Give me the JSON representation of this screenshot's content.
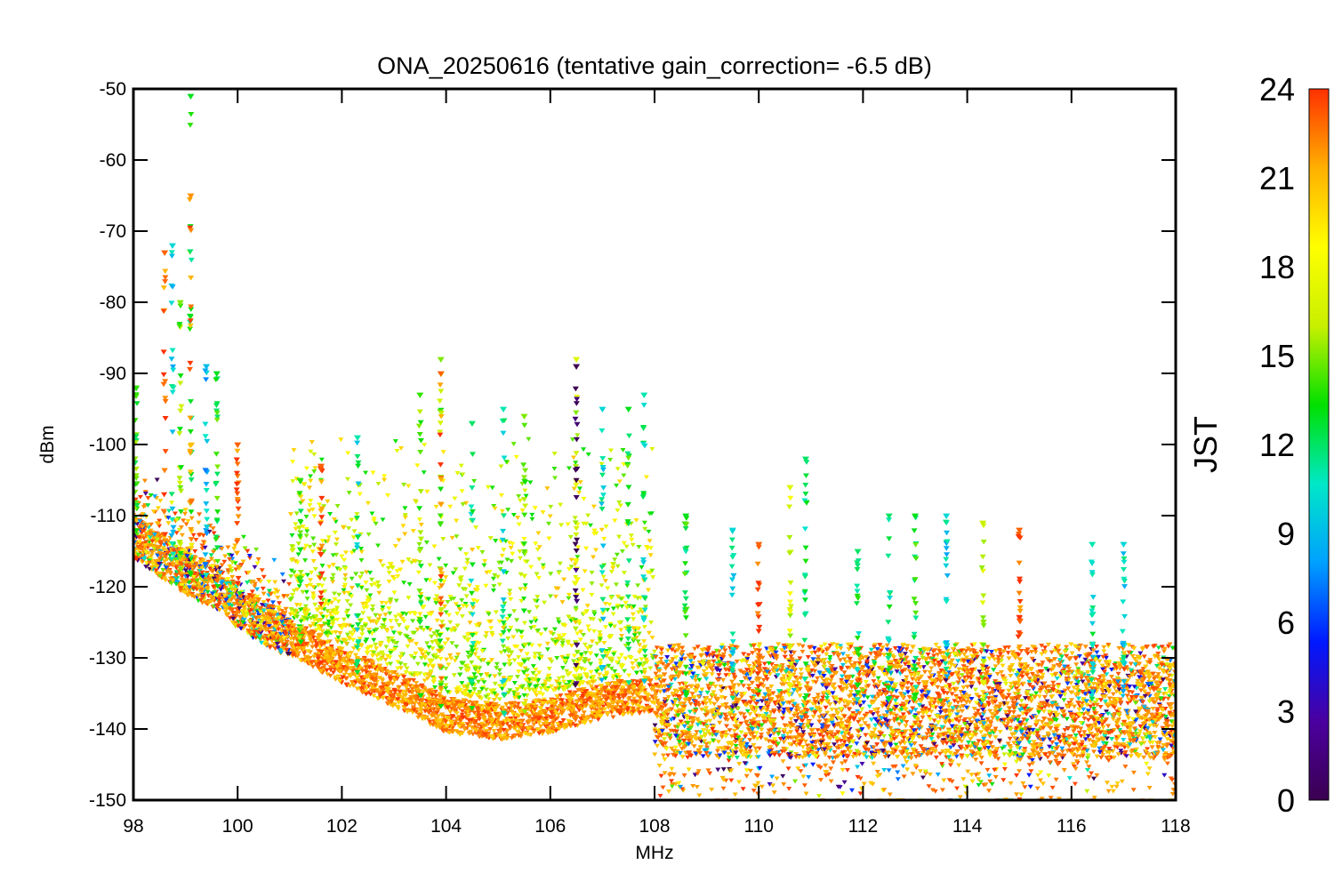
{
  "chart_data": {
    "type": "scatter",
    "title": "ONA_20250616 (tentative gain_correction= -6.5 dB)",
    "xlabel": "MHz",
    "ylabel": "dBm",
    "xlim": [
      98,
      118
    ],
    "ylim": [
      -150,
      -50
    ],
    "x_ticks": [
      "98",
      "100",
      "102",
      "104",
      "106",
      "108",
      "110",
      "112",
      "114",
      "116",
      "118"
    ],
    "y_ticks": [
      "-50",
      "-60",
      "-70",
      "-80",
      "-90",
      "-100",
      "-110",
      "-120",
      "-130",
      "-140",
      "-150"
    ],
    "colorbar": {
      "label": "JST",
      "range": [
        0,
        24
      ],
      "ticks": [
        "0",
        "3",
        "6",
        "9",
        "12",
        "15",
        "18",
        "21",
        "24"
      ],
      "colormap": "rainbow",
      "colors": [
        "#3b0050",
        "#4a00a0",
        "#0018ff",
        "#00a0ff",
        "#00e8c8",
        "#00e000",
        "#c8f000",
        "#ffff00",
        "#ffb000",
        "#ff3000"
      ]
    },
    "grid": false,
    "noise_floor": [
      {
        "x": 98.0,
        "y": -113
      },
      {
        "x": 99.0,
        "y": -118
      },
      {
        "x": 99.8,
        "y": -121
      },
      {
        "x": 100.0,
        "y": -123
      },
      {
        "x": 102.0,
        "y": -131
      },
      {
        "x": 103.5,
        "y": -136
      },
      {
        "x": 104.0,
        "y": -138
      },
      {
        "x": 105.0,
        "y": -139
      },
      {
        "x": 106.0,
        "y": -138
      },
      {
        "x": 107.0,
        "y": -136
      },
      {
        "x": 107.95,
        "y": -135
      },
      {
        "x": 108.0,
        "y": -136
      },
      {
        "x": 118.0,
        "y": -136
      }
    ],
    "peaks": [
      {
        "x": 98.05,
        "y": -92,
        "jst": 14
      },
      {
        "x": 98.6,
        "y": -73,
        "jst": 23
      },
      {
        "x": 98.75,
        "y": -72,
        "jst": 10
      },
      {
        "x": 98.9,
        "y": -80,
        "jst": 15
      },
      {
        "x": 99.1,
        "y": -51,
        "jst": 13
      },
      {
        "x": 99.1,
        "y": -65,
        "jst": 22
      },
      {
        "x": 99.4,
        "y": -89,
        "jst": 9
      },
      {
        "x": 99.6,
        "y": -90,
        "jst": 13
      },
      {
        "x": 100.0,
        "y": -100,
        "jst": 23
      },
      {
        "x": 101.2,
        "y": -105,
        "jst": 14
      },
      {
        "x": 101.6,
        "y": -103,
        "jst": 23
      },
      {
        "x": 102.3,
        "y": -99,
        "jst": 11
      },
      {
        "x": 103.5,
        "y": -93,
        "jst": 14
      },
      {
        "x": 103.9,
        "y": -88,
        "jst": 15
      },
      {
        "x": 103.9,
        "y": -90,
        "jst": 23
      },
      {
        "x": 104.5,
        "y": -97,
        "jst": 12
      },
      {
        "x": 105.1,
        "y": -95,
        "jst": 11
      },
      {
        "x": 105.5,
        "y": -96,
        "jst": 15
      },
      {
        "x": 106.5,
        "y": -88,
        "jst": 17
      },
      {
        "x": 106.5,
        "y": -89,
        "jst": 0
      },
      {
        "x": 107.0,
        "y": -95,
        "jst": 10
      },
      {
        "x": 107.5,
        "y": -95,
        "jst": 13
      },
      {
        "x": 107.8,
        "y": -93,
        "jst": 11
      },
      {
        "x": 108.6,
        "y": -110,
        "jst": 13
      },
      {
        "x": 109.5,
        "y": -112,
        "jst": 10
      },
      {
        "x": 110.0,
        "y": -114,
        "jst": 23
      },
      {
        "x": 110.6,
        "y": -106,
        "jst": 17
      },
      {
        "x": 110.9,
        "y": -102,
        "jst": 12
      },
      {
        "x": 111.9,
        "y": -115,
        "jst": 12
      },
      {
        "x": 112.5,
        "y": -110,
        "jst": 12
      },
      {
        "x": 113.0,
        "y": -110,
        "jst": 13
      },
      {
        "x": 113.6,
        "y": -110,
        "jst": 10
      },
      {
        "x": 114.3,
        "y": -111,
        "jst": 16
      },
      {
        "x": 115.0,
        "y": -112,
        "jst": 23
      },
      {
        "x": 116.4,
        "y": -114,
        "jst": 11
      },
      {
        "x": 117.0,
        "y": -114,
        "jst": 10
      }
    ]
  }
}
